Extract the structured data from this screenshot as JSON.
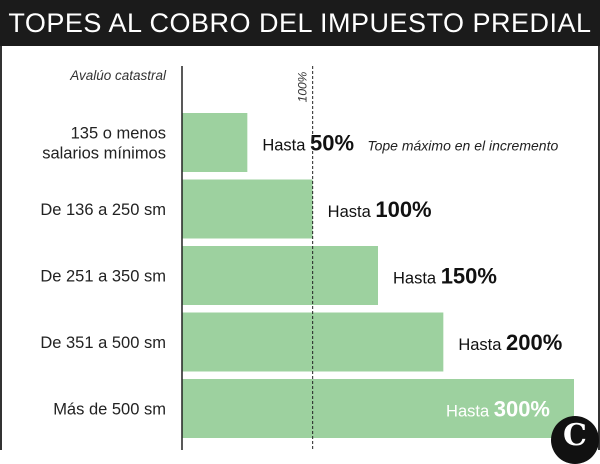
{
  "header": {
    "title": "TOPES AL COBRO DEL IMPUESTO PREDIAL"
  },
  "logo": {
    "text": "C"
  },
  "chart_data": {
    "type": "bar",
    "orientation": "horizontal",
    "title": "TOPES AL COBRO DEL IMPUESTO PREDIAL",
    "category_header": "Avalúo catastral",
    "reference_line": {
      "value": 100,
      "label": "100%"
    },
    "annotation": "Tope máximo en el incremento",
    "label_prefix": "Hasta",
    "bar_color": "#9dd19f",
    "grid": false,
    "xlim": [
      0,
      300
    ],
    "categories": [
      [
        "135 o menos",
        "salarios mínimos"
      ],
      [
        "De 136 a 250 sm"
      ],
      [
        "De 251 a 350 sm"
      ],
      [
        "De 351 a 500 sm"
      ],
      [
        "Más de 500 sm"
      ]
    ],
    "values": [
      50,
      100,
      150,
      200,
      300
    ],
    "value_labels": [
      "50%",
      "100%",
      "150%",
      "200%",
      "300%"
    ]
  }
}
